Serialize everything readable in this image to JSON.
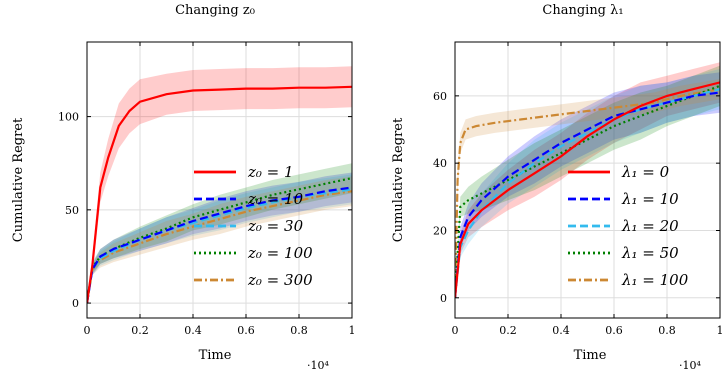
{
  "chart_data": [
    {
      "type": "line",
      "title": "Changing z₀",
      "xlabel": "Time",
      "ylabel": "Cumulative Regret",
      "x_scale_note": "·10⁴",
      "xlim": [
        0,
        1
      ],
      "ylim": [
        -8,
        140
      ],
      "xticks": [
        "0",
        "0.2",
        "0.4",
        "0.6",
        "0.8",
        "1"
      ],
      "yticks": [
        0,
        50,
        100
      ],
      "grid": true,
      "legend_position": "bottom-right",
      "series": [
        {
          "name": "z₀ = 1",
          "color": "#ff0000",
          "dash": "solid",
          "x": [
            0,
            0.02,
            0.05,
            0.08,
            0.12,
            0.16,
            0.2,
            0.3,
            0.4,
            0.5,
            0.6,
            0.7,
            0.8,
            0.9,
            1.0
          ],
          "y": [
            0,
            20,
            62,
            78,
            95,
            103,
            108,
            112,
            114,
            114.5,
            115,
            115,
            115.5,
            115.5,
            116
          ],
          "band": [
            0,
            5,
            8,
            10,
            12,
            12,
            12,
            11,
            11,
            11,
            11,
            11,
            11,
            11,
            11
          ]
        },
        {
          "name": "z₀ = 10",
          "color": "#0000ff",
          "dash": "dashed",
          "x": [
            0,
            0.02,
            0.05,
            0.1,
            0.2,
            0.3,
            0.4,
            0.5,
            0.6,
            0.7,
            0.8,
            0.9,
            1.0
          ],
          "y": [
            0,
            18,
            25,
            29,
            34,
            39,
            44,
            48,
            52,
            55,
            57,
            60,
            62
          ],
          "band": [
            0,
            3,
            4,
            5,
            6,
            7,
            7,
            8,
            8,
            8,
            8,
            8,
            8
          ]
        },
        {
          "name": "z₀ = 30",
          "color": "#33bbee",
          "dash": "dashed",
          "x": [
            0,
            0.02,
            0.05,
            0.1,
            0.2,
            0.3,
            0.4,
            0.5,
            0.6,
            0.7,
            0.8,
            0.9,
            1.0
          ],
          "y": [
            0,
            18,
            24,
            28,
            34,
            39,
            43,
            47,
            51,
            54,
            57,
            59,
            61
          ],
          "band": [
            0,
            3,
            4,
            5,
            6,
            7,
            7,
            8,
            8,
            8,
            8,
            8,
            8
          ]
        },
        {
          "name": "z₀ = 100",
          "color": "#008000",
          "dash": "dotted",
          "x": [
            0,
            0.02,
            0.05,
            0.1,
            0.2,
            0.3,
            0.4,
            0.5,
            0.6,
            0.7,
            0.8,
            0.9,
            1.0
          ],
          "y": [
            0,
            19,
            25,
            29,
            35,
            40,
            46,
            50,
            54,
            58,
            61,
            64,
            67
          ],
          "band": [
            0,
            3,
            4,
            5,
            6,
            7,
            7,
            8,
            8,
            8,
            8,
            8,
            8
          ]
        },
        {
          "name": "z₀ = 300",
          "color": "#cc8833",
          "dash": "dashdot",
          "x": [
            0,
            0.02,
            0.05,
            0.1,
            0.2,
            0.3,
            0.4,
            0.5,
            0.6,
            0.7,
            0.8,
            0.9,
            1.0
          ],
          "y": [
            0,
            18,
            23,
            27,
            32,
            37,
            41,
            45,
            49,
            52,
            55,
            58,
            60
          ],
          "band": [
            0,
            3,
            4,
            5,
            6,
            7,
            7,
            8,
            8,
            8,
            8,
            8,
            8
          ]
        }
      ]
    },
    {
      "type": "line",
      "title": "Changing λ₁",
      "xlabel": "Time",
      "ylabel": "Cumulative Regret",
      "x_scale_note": "·10⁴",
      "xlim": [
        0,
        1
      ],
      "ylim": [
        -6,
        76
      ],
      "xticks": [
        "0",
        "0.2",
        "0.4",
        "0.6",
        "0.8",
        "1"
      ],
      "yticks": [
        0,
        20,
        40,
        60
      ],
      "grid": true,
      "legend_position": "bottom-right",
      "series": [
        {
          "name": "λ₁ = 0",
          "color": "#ff0000",
          "dash": "solid",
          "x": [
            0,
            0.02,
            0.05,
            0.1,
            0.2,
            0.3,
            0.4,
            0.5,
            0.6,
            0.7,
            0.8,
            0.9,
            1.0
          ],
          "y": [
            0,
            16,
            22,
            26,
            32,
            37,
            42,
            48,
            53,
            57,
            60,
            62,
            64
          ],
          "band": [
            0,
            3,
            4,
            5,
            6,
            7,
            7,
            7,
            7,
            7,
            6,
            6,
            6
          ]
        },
        {
          "name": "λ₁ = 10",
          "color": "#0000ff",
          "dash": "dashed",
          "x": [
            0,
            0.02,
            0.05,
            0.1,
            0.2,
            0.3,
            0.4,
            0.5,
            0.6,
            0.7,
            0.8,
            0.9,
            1.0
          ],
          "y": [
            0,
            18,
            24,
            29,
            36,
            41,
            46,
            50,
            54,
            56,
            58,
            60,
            61
          ],
          "band": [
            0,
            3,
            4,
            5,
            6,
            7,
            7,
            7,
            7,
            7,
            6,
            6,
            6
          ]
        },
        {
          "name": "λ₁ = 20",
          "color": "#33bbee",
          "dash": "dashed",
          "x": [
            0,
            0.02,
            0.05,
            0.1,
            0.2,
            0.3,
            0.4,
            0.5,
            0.6,
            0.7,
            0.8,
            0.9,
            1.0
          ],
          "y": [
            0,
            15,
            20,
            26,
            34,
            40,
            45,
            49,
            53,
            56,
            58,
            60,
            62
          ],
          "band": [
            0,
            3,
            4,
            5,
            6,
            7,
            7,
            7,
            7,
            7,
            6,
            6,
            6
          ]
        },
        {
          "name": "λ₁ = 50",
          "color": "#008000",
          "dash": "dotted",
          "x": [
            0,
            0.02,
            0.05,
            0.1,
            0.2,
            0.3,
            0.4,
            0.5,
            0.6,
            0.7,
            0.8,
            0.9,
            1.0
          ],
          "y": [
            0,
            27,
            29,
            31,
            35,
            39,
            43,
            47,
            51,
            54,
            57,
            60,
            63
          ],
          "band": [
            0,
            3,
            4,
            5,
            6,
            7,
            7,
            7,
            7,
            7,
            6,
            6,
            6
          ]
        },
        {
          "name": "λ₁ = 100",
          "color": "#cc8833",
          "dash": "dashdot",
          "x": [
            0,
            0.01,
            0.02,
            0.04,
            0.08,
            0.15,
            0.25,
            0.35,
            0.45,
            0.55,
            0.65,
            0.75,
            0.85,
            1.0
          ],
          "y": [
            0,
            35,
            46,
            50,
            51,
            52,
            53,
            54,
            55,
            56,
            57,
            58,
            60,
            62
          ],
          "band": [
            0,
            3,
            3,
            3,
            3,
            3,
            3,
            3,
            3,
            3,
            3,
            3,
            3,
            3
          ]
        }
      ]
    }
  ]
}
